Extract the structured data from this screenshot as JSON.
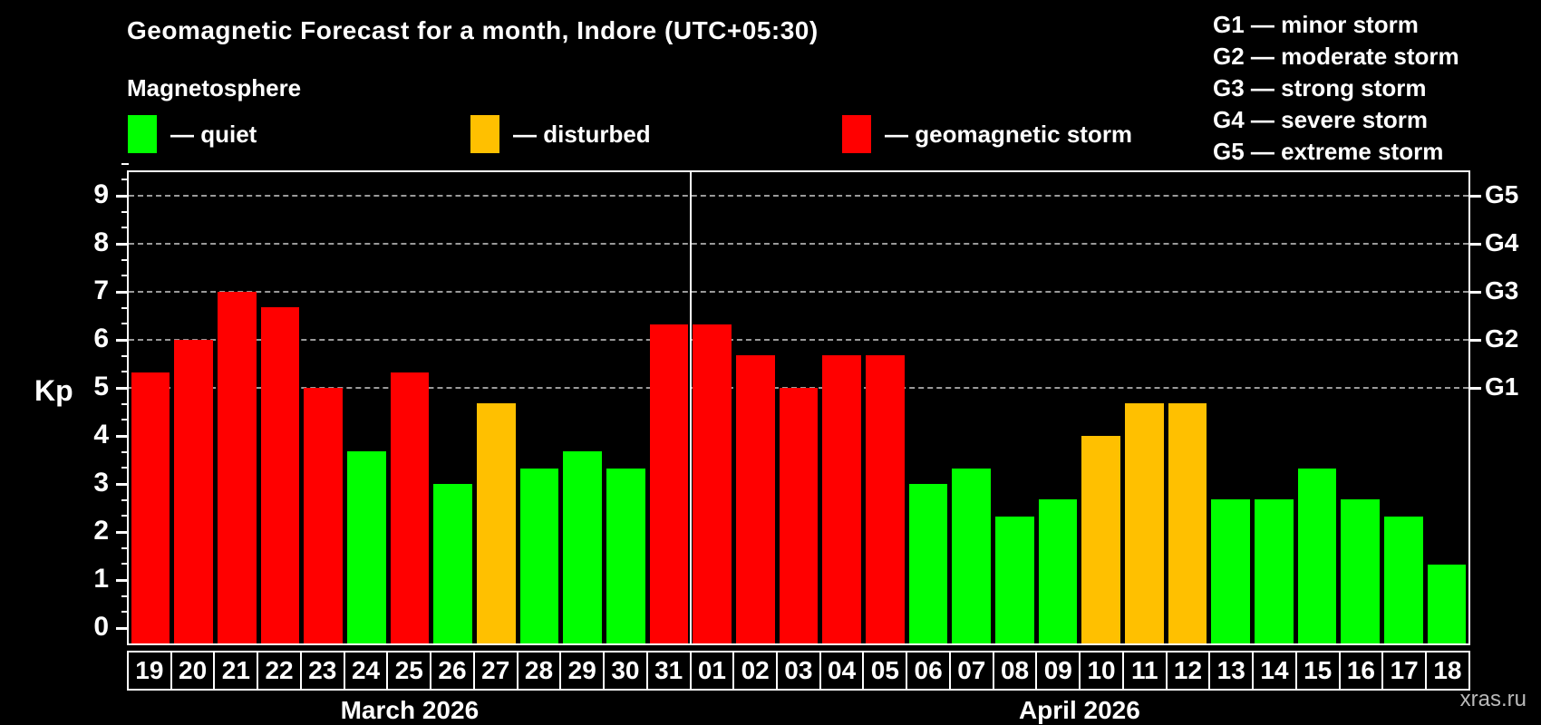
{
  "title": "Geomagnetic Forecast for a month, Indore (UTC+05:30)",
  "subtitle": "Magnetosphere",
  "legend": {
    "items": [
      {
        "label": "— quiet",
        "status": "quiet",
        "color": "#00ff00"
      },
      {
        "label": "— disturbed",
        "status": "disturbed",
        "color": "#ffc000"
      },
      {
        "label": "— geomagnetic storm",
        "status": "storm",
        "color": "#ff0000"
      }
    ]
  },
  "g_scale_legend": [
    "G1 — minor storm",
    "G2 — moderate storm",
    "G3 — strong storm",
    "G4 — severe storm",
    "G5 — extreme storm"
  ],
  "watermark": "xras.ru",
  "colors": {
    "quiet": "#00ff00",
    "disturbed": "#ffc000",
    "storm": "#ff0000",
    "background": "#000000",
    "text": "#ffffff",
    "grid": "#9a9a9a"
  },
  "chart_data": {
    "type": "bar",
    "title": "Geomagnetic Forecast for a month, Indore (UTC+05:30)",
    "ylabel": "Kp",
    "ylim": [
      0,
      9.7
    ],
    "yticks": [
      0,
      1,
      2,
      3,
      4,
      5,
      6,
      7,
      8,
      9
    ],
    "grid_kp": [
      5,
      6,
      7,
      8,
      9
    ],
    "grid_on": true,
    "right_axis": [
      {
        "label": "G1",
        "kp": 5
      },
      {
        "label": "G2",
        "kp": 6
      },
      {
        "label": "G3",
        "kp": 7
      },
      {
        "label": "G4",
        "kp": 8
      },
      {
        "label": "G5",
        "kp": 9
      }
    ],
    "months": [
      {
        "label": "March 2026",
        "days": 13
      },
      {
        "label": "April 2026",
        "days": 18
      }
    ],
    "bars": [
      {
        "day": "19",
        "kp": 5.33,
        "status": "storm"
      },
      {
        "day": "20",
        "kp": 6.0,
        "status": "storm"
      },
      {
        "day": "21",
        "kp": 7.0,
        "status": "storm"
      },
      {
        "day": "22",
        "kp": 6.67,
        "status": "storm"
      },
      {
        "day": "23",
        "kp": 5.0,
        "status": "storm"
      },
      {
        "day": "24",
        "kp": 3.67,
        "status": "quiet"
      },
      {
        "day": "25",
        "kp": 5.33,
        "status": "storm"
      },
      {
        "day": "26",
        "kp": 3.0,
        "status": "quiet"
      },
      {
        "day": "27",
        "kp": 4.67,
        "status": "disturbed"
      },
      {
        "day": "28",
        "kp": 3.33,
        "status": "quiet"
      },
      {
        "day": "29",
        "kp": 3.67,
        "status": "quiet"
      },
      {
        "day": "30",
        "kp": 3.33,
        "status": "quiet"
      },
      {
        "day": "31",
        "kp": 6.33,
        "status": "storm"
      },
      {
        "day": "01",
        "kp": 6.33,
        "status": "storm"
      },
      {
        "day": "02",
        "kp": 5.67,
        "status": "storm"
      },
      {
        "day": "03",
        "kp": 5.0,
        "status": "storm"
      },
      {
        "day": "04",
        "kp": 5.67,
        "status": "storm"
      },
      {
        "day": "05",
        "kp": 5.67,
        "status": "storm"
      },
      {
        "day": "06",
        "kp": 3.0,
        "status": "quiet"
      },
      {
        "day": "07",
        "kp": 3.33,
        "status": "quiet"
      },
      {
        "day": "08",
        "kp": 2.33,
        "status": "quiet"
      },
      {
        "day": "09",
        "kp": 2.67,
        "status": "quiet"
      },
      {
        "day": "10",
        "kp": 4.0,
        "status": "disturbed"
      },
      {
        "day": "11",
        "kp": 4.67,
        "status": "disturbed"
      },
      {
        "day": "12",
        "kp": 4.67,
        "status": "disturbed"
      },
      {
        "day": "13",
        "kp": 2.67,
        "status": "quiet"
      },
      {
        "day": "14",
        "kp": 2.67,
        "status": "quiet"
      },
      {
        "day": "15",
        "kp": 3.33,
        "status": "quiet"
      },
      {
        "day": "16",
        "kp": 2.67,
        "status": "quiet"
      },
      {
        "day": "17",
        "kp": 2.33,
        "status": "quiet"
      },
      {
        "day": "18",
        "kp": 1.33,
        "status": "quiet"
      }
    ]
  }
}
